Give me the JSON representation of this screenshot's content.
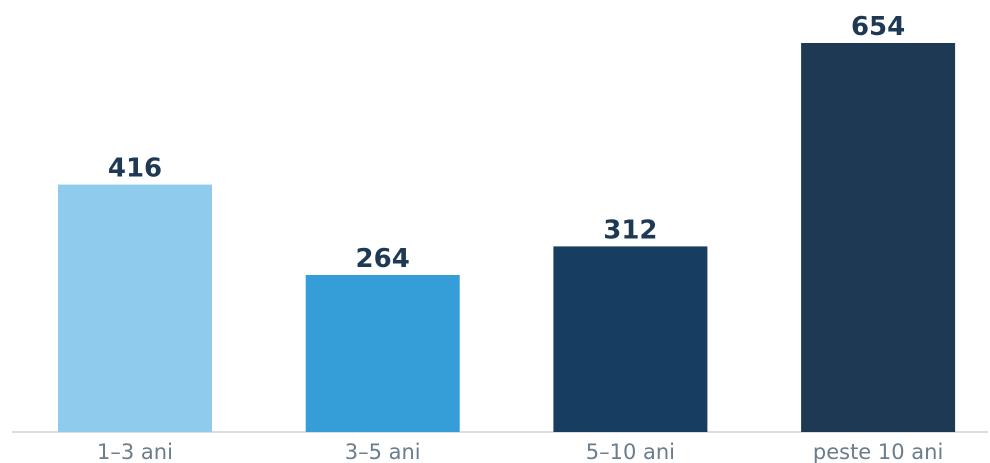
{
  "chart_data": {
    "type": "bar",
    "categories": [
      "1–3 ani",
      "3–5 ani",
      "5–10 ani",
      "peste 10 ani"
    ],
    "values": [
      416,
      264,
      312,
      654
    ],
    "data_labels": [
      "416",
      "264",
      "312",
      "654"
    ],
    "bar_colors": [
      "#8fcbec",
      "#359dd8",
      "#173d60",
      "#1e3954"
    ],
    "label_color": "#1e3954",
    "tick_label_color": "#6b7d8c",
    "axis_color": "#dddddd",
    "title": "",
    "xlabel": "",
    "ylabel": "",
    "ylim": [
      0,
      654
    ],
    "grid": false,
    "legend": "none"
  }
}
